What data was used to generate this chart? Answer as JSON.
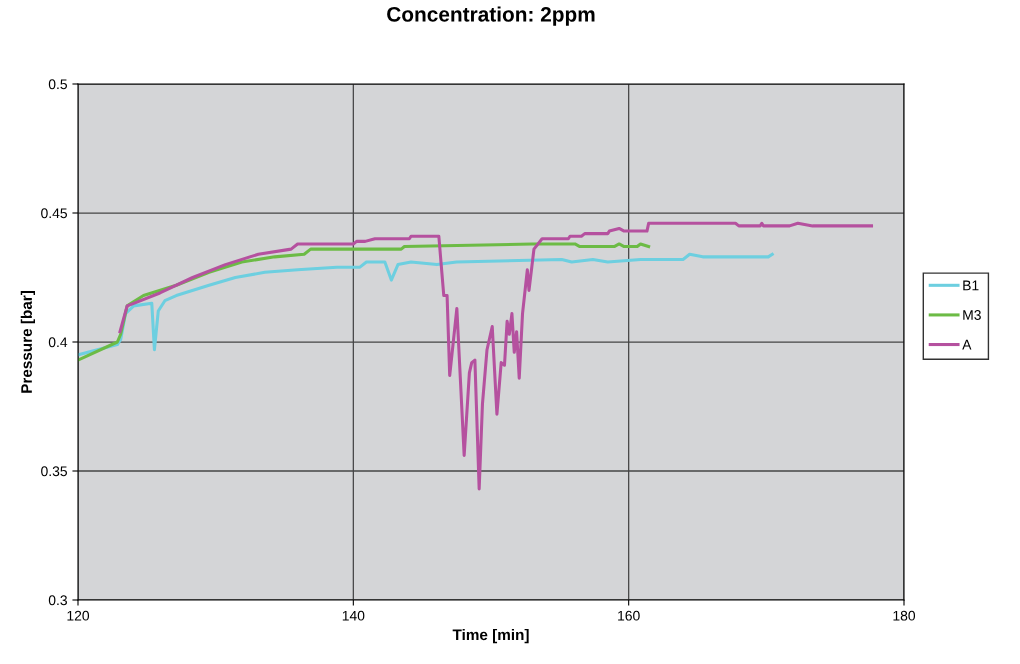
{
  "chart_data": {
    "type": "line",
    "title": "Concentration: 2ppm",
    "xlabel": "Time [min]",
    "ylabel": "Pressure [bar]",
    "xlim": [
      120,
      180
    ],
    "xticks": [
      120,
      140,
      160,
      180
    ],
    "ylim": [
      0.3,
      0.5
    ],
    "yticks": [
      0.3,
      0.35,
      0.4,
      0.45,
      0.5
    ],
    "grid": true,
    "legend": "right",
    "marker": "none",
    "line_style": "solid",
    "series": [
      {
        "name": "B1",
        "color": "#6dcfe0",
        "x": [
          120,
          122.86,
          123.1,
          123.45,
          124.05,
          125.36,
          125.55,
          125.83,
          126.31,
          127.14,
          129.52,
          131.43,
          133.57,
          135.95,
          138.8,
          140.48,
          140.95,
          142.29,
          142.76,
          143.24,
          144.19,
          146.07,
          147.5,
          155.14,
          155.86,
          157.4,
          158.48,
          160.86,
          160.98,
          163.95,
          164.43,
          165.38,
          170.14,
          170.43
        ],
        "values": [
          0.395,
          0.399,
          0.401,
          0.411,
          0.414,
          0.415,
          0.397,
          0.412,
          0.416,
          0.418,
          0.422,
          0.425,
          0.427,
          0.428,
          0.429,
          0.429,
          0.431,
          0.431,
          0.424,
          0.43,
          0.431,
          0.43,
          0.431,
          0.432,
          0.431,
          0.432,
          0.431,
          0.432,
          0.432,
          0.432,
          0.434,
          0.433,
          0.433,
          0.434
        ]
      },
      {
        "name": "M3",
        "color": "#6cbb45",
        "x": [
          120,
          122.86,
          123.1,
          123.57,
          124.76,
          127.14,
          129.52,
          131.9,
          134.29,
          136.43,
          136.9,
          141.43,
          143.48,
          143.71,
          153.0,
          153.24,
          156.1,
          156.45,
          158.95,
          159.31,
          159.67,
          160.62,
          160.86,
          161.45
        ],
        "values": [
          0.393,
          0.4,
          0.403,
          0.414,
          0.418,
          0.422,
          0.427,
          0.431,
          0.433,
          0.434,
          0.436,
          0.436,
          0.436,
          0.437,
          0.438,
          0.438,
          0.438,
          0.437,
          0.437,
          0.438,
          0.437,
          0.437,
          0.438,
          0.437
        ]
      },
      {
        "name": "A",
        "color": "#b5519f",
        "x": [
          123.05,
          123.57,
          124.05,
          125.95,
          128.33,
          130.71,
          133.1,
          135.48,
          135.95,
          140.0,
          140.24,
          140.86,
          141.57,
          144.07,
          144.19,
          146.21,
          146.57,
          146.81,
          147.0,
          147.52,
          148.05,
          148.43,
          148.6,
          148.83,
          149.14,
          149.38,
          149.71,
          150.09,
          150.43,
          150.74,
          150.98,
          151.17,
          151.33,
          151.52,
          151.69,
          151.86,
          152.05,
          152.29,
          152.64,
          152.76,
          153.12,
          153.71,
          154.31,
          155.62,
          155.74,
          156.57,
          156.81,
          158.48,
          158.6,
          159.31,
          159.67,
          161.33,
          161.45,
          167.76,
          168.0,
          169.55,
          169.67,
          169.79,
          171.69,
          172.29,
          173.36,
          177.64
        ],
        "values": [
          0.404,
          0.414,
          0.415,
          0.419,
          0.425,
          0.43,
          0.434,
          0.436,
          0.438,
          0.438,
          0.439,
          0.439,
          0.44,
          0.44,
          0.441,
          0.441,
          0.418,
          0.418,
          0.387,
          0.413,
          0.356,
          0.388,
          0.392,
          0.393,
          0.343,
          0.376,
          0.397,
          0.406,
          0.372,
          0.392,
          0.391,
          0.408,
          0.403,
          0.411,
          0.396,
          0.404,
          0.386,
          0.411,
          0.428,
          0.42,
          0.436,
          0.44,
          0.44,
          0.44,
          0.441,
          0.441,
          0.442,
          0.442,
          0.443,
          0.444,
          0.443,
          0.443,
          0.446,
          0.446,
          0.445,
          0.445,
          0.446,
          0.445,
          0.445,
          0.446,
          0.445,
          0.445
        ]
      }
    ]
  }
}
